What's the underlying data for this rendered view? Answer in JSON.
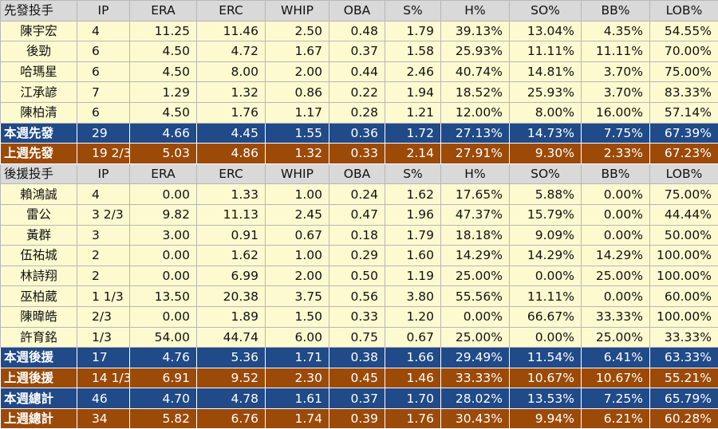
{
  "columns": [
    "IP",
    "ERA",
    "ERC",
    "WHIP",
    "OBA",
    "S%",
    "H%",
    "SO%",
    "BB%",
    "LOB%"
  ],
  "starters": {
    "header_label": "先發投手",
    "players": [
      {
        "name": "陳宇宏",
        "ip": "4",
        "stats": [
          "11.25",
          "11.46",
          "2.50",
          "0.48",
          "1.79",
          "39.13%",
          "13.04%",
          "4.35%",
          "54.55%"
        ]
      },
      {
        "name": "後勁",
        "ip": "6",
        "stats": [
          "4.50",
          "4.72",
          "1.67",
          "0.37",
          "1.58",
          "25.93%",
          "11.11%",
          "11.11%",
          "70.00%"
        ]
      },
      {
        "name": "哈瑪星",
        "ip": "6",
        "stats": [
          "4.50",
          "8.00",
          "2.00",
          "0.44",
          "2.46",
          "40.74%",
          "14.81%",
          "3.70%",
          "75.00%"
        ]
      },
      {
        "name": "江承諺",
        "ip": "7",
        "stats": [
          "1.29",
          "1.32",
          "0.86",
          "0.22",
          "1.94",
          "18.52%",
          "25.93%",
          "3.70%",
          "83.33%"
        ]
      },
      {
        "name": "陳柏清",
        "ip": "6",
        "stats": [
          "4.50",
          "1.76",
          "1.17",
          "0.28",
          "1.21",
          "12.00%",
          "8.00%",
          "16.00%",
          "57.14%"
        ]
      }
    ],
    "this_week": {
      "name": "本週先發",
      "ip": "29",
      "stats": [
        "4.66",
        "4.45",
        "1.55",
        "0.36",
        "1.72",
        "27.13%",
        "14.73%",
        "7.75%",
        "67.39%"
      ]
    },
    "last_week": {
      "name": "上週先發",
      "ip": "19 2/3",
      "stats": [
        "5.03",
        "4.86",
        "1.32",
        "0.33",
        "2.14",
        "27.91%",
        "9.30%",
        "2.33%",
        "67.23%"
      ]
    }
  },
  "relievers": {
    "header_label": "後援投手",
    "players": [
      {
        "name": "賴鴻誠",
        "ip": "4",
        "stats": [
          "0.00",
          "1.33",
          "1.00",
          "0.24",
          "1.62",
          "17.65%",
          "5.88%",
          "0.00%",
          "75.00%"
        ]
      },
      {
        "name": "雷公",
        "ip": "3 2/3",
        "stats": [
          "9.82",
          "11.13",
          "2.45",
          "0.47",
          "1.96",
          "47.37%",
          "15.79%",
          "0.00%",
          "44.44%"
        ]
      },
      {
        "name": "黃群",
        "ip": "3",
        "stats": [
          "3.00",
          "0.91",
          "0.67",
          "0.18",
          "1.79",
          "18.18%",
          "9.09%",
          "0.00%",
          "50.00%"
        ]
      },
      {
        "name": "伍祐城",
        "ip": "2",
        "stats": [
          "0.00",
          "1.62",
          "1.00",
          "0.29",
          "1.60",
          "14.29%",
          "14.29%",
          "14.29%",
          "100.00%"
        ]
      },
      {
        "name": "林詩翔",
        "ip": "2",
        "stats": [
          "0.00",
          "6.99",
          "2.00",
          "0.50",
          "1.19",
          "25.00%",
          "0.00%",
          "25.00%",
          "100.00%"
        ]
      },
      {
        "name": "巫柏葳",
        "ip": "1 1/3",
        "stats": [
          "13.50",
          "20.38",
          "3.75",
          "0.56",
          "3.80",
          "55.56%",
          "11.11%",
          "0.00%",
          "60.00%"
        ]
      },
      {
        "name": "陳暐皓",
        "ip": "2/3",
        "stats": [
          "0.00",
          "1.89",
          "1.50",
          "0.33",
          "1.20",
          "0.00%",
          "66.67%",
          "33.33%",
          "100.00%"
        ]
      },
      {
        "name": "許育銘",
        "ip": "1/3",
        "stats": [
          "54.00",
          "44.74",
          "6.00",
          "0.75",
          "0.67",
          "25.00%",
          "0.00%",
          "25.00%",
          "33.33%"
        ]
      }
    ],
    "this_week": {
      "name": "本週後援",
      "ip": "17",
      "stats": [
        "4.76",
        "5.36",
        "1.71",
        "0.38",
        "1.66",
        "29.49%",
        "11.54%",
        "6.41%",
        "63.33%"
      ]
    },
    "last_week": {
      "name": "上週後援",
      "ip": "14 1/3",
      "stats": [
        "6.91",
        "9.52",
        "2.30",
        "0.45",
        "1.46",
        "33.33%",
        "10.67%",
        "10.67%",
        "55.21%"
      ]
    }
  },
  "totals": {
    "this_week": {
      "name": "本週總計",
      "ip": "46",
      "stats": [
        "4.70",
        "4.78",
        "1.61",
        "0.37",
        "1.70",
        "28.02%",
        "13.53%",
        "7.25%",
        "65.79%"
      ]
    },
    "last_week": {
      "name": "上週總計",
      "ip": "34",
      "stats": [
        "5.82",
        "6.76",
        "1.74",
        "0.39",
        "1.76",
        "30.43%",
        "9.94%",
        "6.21%",
        "60.28%"
      ]
    }
  },
  "colors": {
    "header_bg": "#d9d9d9",
    "player_bg": "#fdfad0",
    "this_week_bg": "#204a88",
    "last_week_bg": "#9c4a08",
    "summary_text": "#ffffff"
  }
}
